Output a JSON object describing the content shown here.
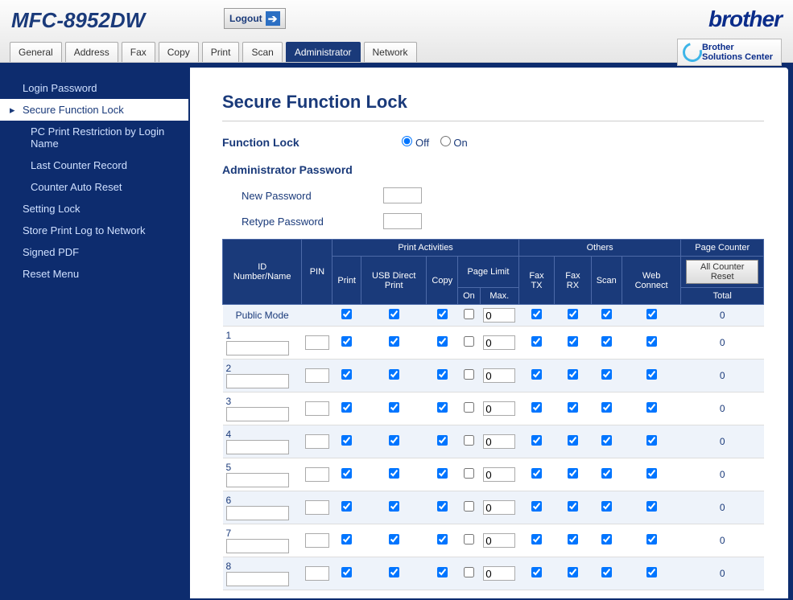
{
  "header": {
    "model": "MFC-8952DW",
    "logout": "Logout",
    "brand": "brother",
    "solutions_line1": "Brother",
    "solutions_line2": "Solutions Center"
  },
  "tabs": [
    "General",
    "Address",
    "Fax",
    "Copy",
    "Print",
    "Scan",
    "Administrator",
    "Network"
  ],
  "active_tab_index": 6,
  "sidebar": [
    {
      "label": "Login Password",
      "selected": false,
      "sub": false
    },
    {
      "label": "Secure Function Lock",
      "selected": true,
      "sub": false
    },
    {
      "label": "PC Print Restriction by Login Name",
      "selected": false,
      "sub": true
    },
    {
      "label": "Last Counter Record",
      "selected": false,
      "sub": true
    },
    {
      "label": "Counter Auto Reset",
      "selected": false,
      "sub": true
    },
    {
      "label": "Setting Lock",
      "selected": false,
      "sub": false
    },
    {
      "label": "Store Print Log to Network",
      "selected": false,
      "sub": false
    },
    {
      "label": "Signed PDF",
      "selected": false,
      "sub": false
    },
    {
      "label": "Reset Menu",
      "selected": false,
      "sub": false
    }
  ],
  "page": {
    "title": "Secure Function Lock",
    "function_lock_label": "Function Lock",
    "off_label": "Off",
    "on_label": "On",
    "function_lock_value": "off",
    "admin_pwd_label": "Administrator Password",
    "new_pwd_label": "New Password",
    "retype_pwd_label": "Retype Password"
  },
  "table": {
    "headers": {
      "id": "ID Number/Name",
      "pin": "PIN",
      "print_activities": "Print Activities",
      "others": "Others",
      "page_counter": "Page Counter",
      "print": "Print",
      "usb": "USB Direct Print",
      "copy": "Copy",
      "page_limit": "Page Limit",
      "on": "On",
      "max": "Max.",
      "faxtx": "Fax TX",
      "faxrx": "Fax RX",
      "scan": "Scan",
      "web": "Web Connect",
      "counter_reset": "All Counter Reset",
      "total": "Total"
    },
    "public_mode_label": "Public Mode",
    "rows": [
      {
        "num": "",
        "id": "Public Mode",
        "is_public": true,
        "print": true,
        "usb": true,
        "copy": true,
        "limit_on": false,
        "max": "0",
        "faxtx": true,
        "faxrx": true,
        "scan": true,
        "web": true,
        "total": "0"
      },
      {
        "num": "1",
        "is_public": false,
        "print": true,
        "usb": true,
        "copy": true,
        "limit_on": false,
        "max": "0",
        "faxtx": true,
        "faxrx": true,
        "scan": true,
        "web": true,
        "total": "0"
      },
      {
        "num": "2",
        "is_public": false,
        "print": true,
        "usb": true,
        "copy": true,
        "limit_on": false,
        "max": "0",
        "faxtx": true,
        "faxrx": true,
        "scan": true,
        "web": true,
        "total": "0"
      },
      {
        "num": "3",
        "is_public": false,
        "print": true,
        "usb": true,
        "copy": true,
        "limit_on": false,
        "max": "0",
        "faxtx": true,
        "faxrx": true,
        "scan": true,
        "web": true,
        "total": "0"
      },
      {
        "num": "4",
        "is_public": false,
        "print": true,
        "usb": true,
        "copy": true,
        "limit_on": false,
        "max": "0",
        "faxtx": true,
        "faxrx": true,
        "scan": true,
        "web": true,
        "total": "0"
      },
      {
        "num": "5",
        "is_public": false,
        "print": true,
        "usb": true,
        "copy": true,
        "limit_on": false,
        "max": "0",
        "faxtx": true,
        "faxrx": true,
        "scan": true,
        "web": true,
        "total": "0"
      },
      {
        "num": "6",
        "is_public": false,
        "print": true,
        "usb": true,
        "copy": true,
        "limit_on": false,
        "max": "0",
        "faxtx": true,
        "faxrx": true,
        "scan": true,
        "web": true,
        "total": "0"
      },
      {
        "num": "7",
        "is_public": false,
        "print": true,
        "usb": true,
        "copy": true,
        "limit_on": false,
        "max": "0",
        "faxtx": true,
        "faxrx": true,
        "scan": true,
        "web": true,
        "total": "0"
      },
      {
        "num": "8",
        "is_public": false,
        "print": true,
        "usb": true,
        "copy": true,
        "limit_on": false,
        "max": "0",
        "faxtx": true,
        "faxrx": true,
        "scan": true,
        "web": true,
        "total": "0"
      }
    ]
  }
}
